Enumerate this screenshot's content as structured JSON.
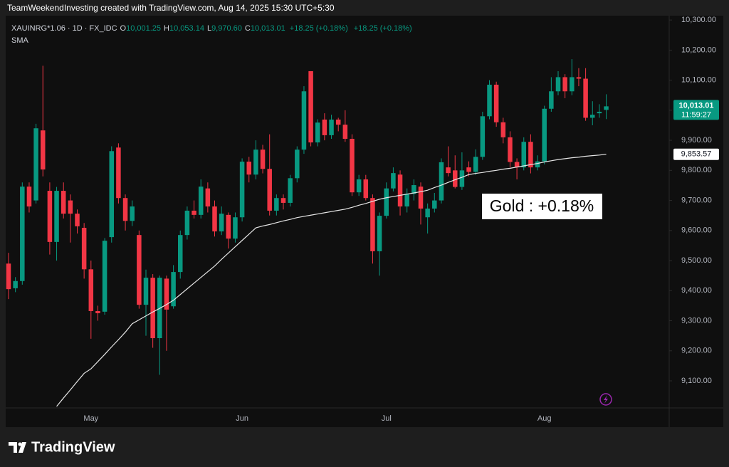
{
  "header": "TeamWeekendInvesting created with TradingView.com, Aug 14, 2025 15:30 UTC+5:30",
  "footer": "TradingView",
  "chart_data": {
    "type": "candlestick",
    "legend": {
      "symbol": "XAUINRG*1.06 · 1D · FX_IDC",
      "items": [
        {
          "key": "O",
          "value": "10,001.25"
        },
        {
          "key": "H",
          "value": "10,053.14"
        },
        {
          "key": "L",
          "value": "9,970.60"
        },
        {
          "key": "C",
          "value": "10,013.01"
        }
      ],
      "change": "+18.25 (+0.18%)",
      "change_2": "+18.25 (+0.18%)"
    },
    "annotation": "Gold : +0.18%",
    "up_color": "#089981",
    "down_color": "#f23645",
    "categories": [
      null,
      null,
      null,
      null,
      null,
      null,
      null,
      null,
      null,
      null,
      null,
      null,
      "May",
      null,
      null,
      null,
      null,
      null,
      null,
      null,
      null,
      null,
      null,
      null,
      null,
      null,
      null,
      null,
      null,
      null,
      null,
      null,
      null,
      null,
      "Jun",
      null,
      null,
      null,
      null,
      null,
      null,
      null,
      null,
      null,
      null,
      null,
      null,
      null,
      null,
      null,
      null,
      null,
      null,
      null,
      null,
      "Jul",
      null,
      null,
      null,
      null,
      null,
      null,
      null,
      null,
      null,
      null,
      null,
      null,
      null,
      null,
      null,
      null,
      null,
      null,
      null,
      null,
      null,
      null,
      "Aug",
      null,
      null,
      null,
      null,
      null,
      null,
      null,
      null,
      null
    ],
    "open": [
      9490,
      9408,
      9432,
      9746,
      9700,
      9933,
      9732,
      9562,
      9732,
      9700,
      9656,
      9609,
      9471,
      9332,
      9330,
      9578,
      9876,
      9708,
      9632,
      9585,
      9353,
      9443,
      9242,
      9440,
      9348,
      9462,
      9585,
      9666,
      9652,
      9740,
      9680,
      9597,
      9652,
      9573,
      9644,
      9829,
      9786,
      9869,
      9805,
      9666,
      9708,
      9692,
      9774,
      9869,
      10130,
      9893,
      9969,
      9917,
      9969,
      9952,
      9905,
      9727,
      9770,
      9708,
      9531,
      9649,
      9740,
      9786,
      9680,
      9722,
      9746,
      9644,
      9673,
      9700,
      9810,
      9800,
      9745,
      9810,
      9795,
      9845,
      9980,
      10085,
      9960,
      9910,
      9828,
      9810,
      9895,
      9810,
      9830,
      10005,
      10063,
      10110,
      10063,
      10110,
      10105,
      9975,
      9990,
      10001.25
    ],
    "high": [
      9526,
      9445,
      9760,
      9760,
      9955,
      10148,
      9760,
      9745,
      9760,
      9720,
      9670,
      9625,
      9500,
      9350,
      9575,
      9880,
      9890,
      9720,
      9700,
      9600,
      9470,
      9455,
      9450,
      9450,
      9485,
      9600,
      9680,
      9700,
      9770,
      9760,
      9700,
      9680,
      9660,
      9660,
      9840,
      9845,
      9900,
      9885,
      9920,
      9720,
      9720,
      9785,
      9880,
      10080,
      10130,
      9970,
      9990,
      9985,
      9975,
      10000,
      9920,
      9785,
      9785,
      9720,
      9660,
      9760,
      9810,
      9800,
      9740,
      9770,
      9760,
      9690,
      9725,
      9840,
      9880,
      9850,
      9860,
      9830,
      9870,
      9995,
      10100,
      10095,
      9975,
      9930,
      9840,
      9910,
      9920,
      9850,
      10015,
      10110,
      10130,
      10120,
      10170,
      10140,
      10140,
      10030,
      10020,
      10053.14
    ],
    "low": [
      9372,
      9395,
      9420,
      9660,
      9690,
      9780,
      9520,
      9500,
      9640,
      9560,
      9590,
      9440,
      9240,
      9300,
      9320,
      9560,
      9690,
      9600,
      9615,
      9340,
      9250,
      9210,
      9120,
      9200,
      9340,
      9440,
      9570,
      9640,
      9640,
      9660,
      9580,
      9585,
      9540,
      9560,
      9630,
      9760,
      9770,
      9790,
      9650,
      9650,
      9670,
      9680,
      9760,
      9855,
      9880,
      9880,
      9900,
      9905,
      9930,
      9895,
      9715,
      9715,
      9700,
      9490,
      9450,
      9640,
      9730,
      9650,
      9660,
      9700,
      9620,
      9590,
      9660,
      9690,
      9780,
      9740,
      9735,
      9780,
      9785,
      9835,
      9970,
      9945,
      9890,
      9810,
      9770,
      9800,
      9790,
      9800,
      9820,
      9995,
      10050,
      10040,
      10050,
      10080,
      9965,
      9950,
      9975,
      9970.6
    ],
    "close": [
      9405,
      9432,
      9746,
      9680,
      9940,
      9803,
      9562,
      9732,
      9656,
      9656,
      9614,
      9471,
      9332,
      9325,
      9566,
      9864,
      9708,
      9632,
      9680,
      9353,
      9443,
      9242,
      9443,
      9337,
      9462,
      9585,
      9666,
      9652,
      9746,
      9680,
      9597,
      9656,
      9573,
      9644,
      9829,
      9786,
      9869,
      9805,
      9666,
      9708,
      9692,
      9774,
      9869,
      10063,
      9893,
      9959,
      9917,
      9969,
      9952,
      9905,
      9727,
      9770,
      9708,
      9531,
      9649,
      9740,
      9791,
      9680,
      9722,
      9751,
      9673,
      9673,
      9700,
      9827,
      9791,
      9745,
      9800,
      9795,
      9845,
      9980,
      10085,
      9960,
      9910,
      9828,
      9810,
      9895,
      9810,
      9830,
      10005,
      10063,
      10110,
      10063,
      10110,
      10105,
      9975,
      9985,
      9995,
      10013.01
    ],
    "overlays": [
      {
        "name": "SMA",
        "color": "#e6e6e6",
        "values": [
          null,
          null,
          null,
          null,
          null,
          null,
          null,
          9015,
          9043,
          9070,
          9098,
          9125,
          9140,
          9164,
          9188,
          9213,
          9237,
          9262,
          9290,
          9303,
          9316,
          9329,
          9341,
          9354,
          9368,
          9387,
          9406,
          9425,
          9444,
          9463,
          9482,
          9504,
          9525,
          9546,
          9567,
          9588,
          9609,
          9615,
          9620,
          9626,
          9632,
          9637,
          9643,
          9647,
          9651,
          9655,
          9659,
          9663,
          9667,
          9671,
          9677,
          9684,
          9690,
          9697,
          9704,
          9709,
          9713,
          9717,
          9721,
          9725,
          9729,
          9734,
          9743,
          9751,
          9760,
          9769,
          9777,
          9786,
          9790,
          9793,
          9797,
          9800,
          9804,
          9807,
          9811,
          9815,
          9819,
          9823,
          9828,
          9832,
          9836,
          9839,
          9842,
          9844,
          9847,
          9849,
          9851,
          9853.57
        ]
      }
    ],
    "last_price": {
      "value": 10013.01,
      "label": "10,013.01",
      "countdown": "11:59:27"
    },
    "sma_price": {
      "value": 9853.57,
      "label": "9,853.57"
    },
    "ylim": [
      9010,
      10343
    ],
    "yticks": [
      {
        "value": 9100,
        "label": "9,100.00"
      },
      {
        "value": 9200,
        "label": "9,200.00"
      },
      {
        "value": 9300,
        "label": "9,300.00"
      },
      {
        "value": 9400,
        "label": "9,400.00"
      },
      {
        "value": 9500,
        "label": "9,500.00"
      },
      {
        "value": 9600,
        "label": "9,600.00"
      },
      {
        "value": 9700,
        "label": "9,700.00"
      },
      {
        "value": 9800,
        "label": "9,800.00"
      },
      {
        "value": 9900,
        "label": "9,900.00"
      },
      {
        "value": 10000,
        "label": "10,000.00"
      },
      {
        "value": 10100,
        "label": "10,100.00"
      },
      {
        "value": 10200,
        "label": "10,200.00"
      },
      {
        "value": 10300,
        "label": "10,300.00"
      }
    ],
    "grid": false
  }
}
